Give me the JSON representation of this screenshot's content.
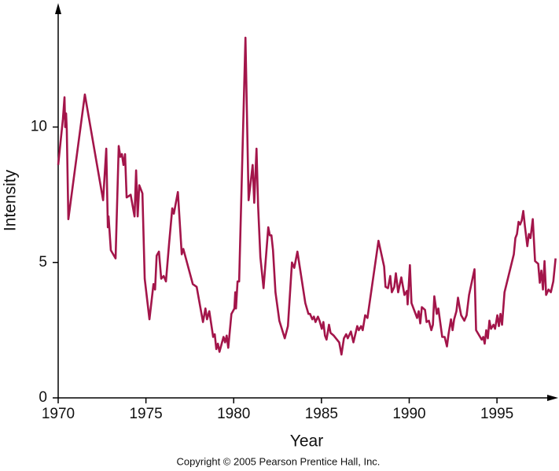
{
  "chart_data": {
    "type": "line",
    "x_label": "Year",
    "y_label": "Intensity",
    "footer": "Copyright © 2005 Pearson Prentice Hall, Inc.",
    "xlim": [
      1970,
      1998.4
    ],
    "ylim": [
      0,
      14.4
    ],
    "xticks": [
      1970,
      1975,
      1980,
      1985,
      1990,
      1995
    ],
    "yticks": [
      0,
      5,
      10
    ],
    "grid": false,
    "series": [
      {
        "color": "#a3154a",
        "x": [
          1970.0,
          1970.27,
          1970.36,
          1970.4,
          1970.45,
          1970.49,
          1970.58,
          1971.52,
          1972.56,
          1972.74,
          1972.83,
          1972.87,
          1973.0,
          1973.27,
          1973.45,
          1973.54,
          1973.63,
          1973.72,
          1973.81,
          1973.9,
          1974.13,
          1974.35,
          1974.44,
          1974.53,
          1974.62,
          1974.8,
          1974.93,
          1975.2,
          1975.43,
          1975.52,
          1975.61,
          1975.74,
          1975.87,
          1976.01,
          1976.14,
          1976.32,
          1976.5,
          1976.59,
          1976.82,
          1977.04,
          1977.13,
          1977.67,
          1977.89,
          1978.25,
          1978.39,
          1978.48,
          1978.61,
          1978.83,
          1978.92,
          1979.01,
          1979.1,
          1979.19,
          1979.42,
          1979.51,
          1979.6,
          1979.69,
          1979.87,
          1980.04,
          1980.09,
          1980.13,
          1980.22,
          1980.31,
          1980.67,
          1980.85,
          1981.08,
          1981.17,
          1981.3,
          1981.39,
          1981.52,
          1981.7,
          1981.97,
          1982.06,
          1982.15,
          1982.24,
          1982.38,
          1982.6,
          1982.91,
          1983.09,
          1983.32,
          1983.45,
          1983.63,
          1984.08,
          1984.26,
          1984.35,
          1984.48,
          1984.57,
          1984.66,
          1984.8,
          1984.89,
          1985.02,
          1985.11,
          1985.2,
          1985.29,
          1985.43,
          1985.52,
          1985.7,
          1986.01,
          1986.14,
          1986.28,
          1986.41,
          1986.5,
          1986.68,
          1986.82,
          1987.04,
          1987.13,
          1987.26,
          1987.35,
          1987.49,
          1987.62,
          1988.25,
          1988.57,
          1988.65,
          1988.79,
          1988.92,
          1989.01,
          1989.15,
          1989.24,
          1989.37,
          1989.55,
          1989.73,
          1989.87,
          1989.91,
          1990.04,
          1990.13,
          1990.45,
          1990.54,
          1990.63,
          1990.72,
          1990.9,
          1990.99,
          1991.12,
          1991.26,
          1991.35,
          1991.43,
          1991.57,
          1991.66,
          1991.88,
          1992.02,
          1992.15,
          1992.24,
          1992.38,
          1992.47,
          1992.56,
          1992.69,
          1992.78,
          1992.87,
          1992.96,
          1993.14,
          1993.27,
          1993.41,
          1993.72,
          1993.81,
          1994.13,
          1994.22,
          1994.3,
          1994.39,
          1994.48,
          1994.57,
          1994.66,
          1994.8,
          1994.89,
          1995.02,
          1995.11,
          1995.2,
          1995.29,
          1995.43,
          1995.96,
          1996.05,
          1996.14,
          1996.23,
          1996.32,
          1996.41,
          1996.5,
          1996.59,
          1996.73,
          1996.82,
          1996.91,
          1997.04,
          1997.17,
          1997.35,
          1997.44,
          1997.53,
          1997.62,
          1997.71,
          1997.8,
          1997.94,
          1998.07,
          1998.21,
          1998.34
        ],
        "values": [
          8.6,
          10.3,
          11.1,
          10.0,
          10.5,
          9.9,
          6.6,
          11.2,
          7.3,
          9.2,
          6.3,
          6.7,
          5.45,
          5.15,
          9.3,
          8.9,
          9.0,
          8.6,
          9.0,
          7.4,
          7.5,
          6.7,
          8.4,
          6.7,
          7.85,
          7.55,
          4.4,
          2.9,
          4.2,
          4.0,
          5.25,
          5.4,
          4.4,
          4.5,
          4.3,
          5.7,
          7.0,
          6.8,
          7.6,
          5.3,
          5.5,
          4.2,
          4.1,
          2.8,
          3.3,
          2.9,
          3.2,
          2.25,
          2.35,
          1.8,
          2.0,
          1.7,
          2.25,
          2.05,
          2.3,
          1.85,
          3.1,
          3.3,
          3.9,
          3.3,
          4.3,
          4.3,
          13.3,
          7.3,
          8.6,
          7.2,
          9.2,
          7.1,
          5.2,
          4.05,
          6.3,
          6.0,
          6.0,
          5.45,
          3.9,
          2.85,
          2.2,
          2.65,
          5.0,
          4.8,
          5.4,
          3.5,
          3.1,
          3.1,
          2.9,
          3.0,
          2.8,
          3.0,
          2.85,
          2.55,
          2.8,
          2.3,
          2.15,
          2.7,
          2.4,
          2.3,
          2.05,
          1.6,
          2.2,
          2.35,
          2.2,
          2.45,
          2.05,
          2.65,
          2.5,
          2.65,
          2.5,
          3.05,
          2.95,
          5.8,
          4.85,
          4.1,
          4.05,
          4.5,
          3.9,
          4.1,
          4.6,
          3.9,
          4.45,
          3.8,
          3.95,
          3.45,
          4.9,
          3.5,
          2.95,
          3.2,
          2.75,
          3.35,
          3.25,
          2.8,
          2.85,
          2.5,
          2.7,
          3.75,
          3.1,
          3.3,
          2.25,
          2.25,
          1.9,
          2.35,
          2.9,
          2.5,
          2.9,
          3.2,
          3.7,
          3.35,
          3.05,
          2.85,
          3.05,
          3.8,
          4.75,
          2.5,
          2.15,
          2.25,
          2.0,
          2.5,
          2.2,
          2.85,
          2.55,
          2.7,
          2.55,
          3.05,
          2.65,
          3.1,
          2.7,
          3.9,
          5.3,
          5.9,
          6.05,
          6.5,
          6.4,
          6.55,
          6.9,
          6.35,
          5.6,
          6.05,
          5.9,
          6.6,
          5.05,
          4.95,
          4.25,
          4.7,
          4.0,
          5.05,
          3.8,
          4.0,
          3.9,
          4.3,
          5.15
        ]
      }
    ]
  }
}
